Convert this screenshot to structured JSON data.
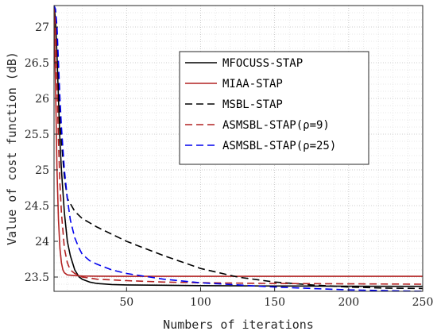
{
  "chart_data": {
    "type": "line",
    "title": "",
    "xlabel": "Numbers of iterations",
    "ylabel": "Value of cost function (dB)",
    "xlim": [
      1,
      250
    ],
    "ylim": [
      23.3,
      27.3
    ],
    "xticks": [
      50,
      100,
      150,
      200,
      250
    ],
    "yticks": [
      23.5,
      24,
      24.5,
      25,
      25.5,
      26,
      26.5,
      27
    ],
    "ytick_labels": [
      "23.5",
      "24",
      "24.5",
      "25",
      "25.5",
      "26",
      "26.5",
      "27"
    ],
    "grid": "dotted major and minor",
    "legend_position": "upper-right",
    "series": [
      {
        "name": "MFOCUSS-STAP",
        "color": "#000000",
        "dash": "solid",
        "x": [
          1,
          2,
          3,
          4,
          5,
          6,
          8,
          10,
          12,
          15,
          18,
          20,
          25,
          30,
          40,
          50,
          75,
          100,
          150,
          200,
          250
        ],
        "y": [
          27.3,
          27.1,
          26.6,
          26.0,
          25.4,
          25.0,
          24.4,
          24.0,
          23.8,
          23.6,
          23.5,
          23.47,
          23.43,
          23.41,
          23.395,
          23.39,
          23.385,
          23.38,
          23.375,
          23.372,
          23.37
        ]
      },
      {
        "name": "MIAA-STAP",
        "color": "#b22222",
        "dash": "solid",
        "x": [
          1,
          2,
          3,
          4,
          5,
          6,
          7,
          8,
          10,
          15,
          20,
          30,
          50,
          100,
          150,
          200,
          250
        ],
        "y": [
          27.3,
          26.2,
          25.0,
          24.3,
          23.9,
          23.7,
          23.6,
          23.56,
          23.53,
          23.52,
          23.515,
          23.512,
          23.51,
          23.51,
          23.51,
          23.51,
          23.51
        ]
      },
      {
        "name": "MSBL-STAP",
        "color": "#000000",
        "dash": "dashed",
        "x": [
          1,
          2,
          3,
          4,
          5,
          6,
          8,
          10,
          15,
          20,
          25,
          30,
          40,
          50,
          60,
          75,
          100,
          125,
          150,
          175,
          200,
          225,
          250
        ],
        "y": [
          27.3,
          27.2,
          26.8,
          26.3,
          25.8,
          25.4,
          24.9,
          24.6,
          24.42,
          24.32,
          24.26,
          24.2,
          24.1,
          24.0,
          23.92,
          23.8,
          23.62,
          23.5,
          23.43,
          23.39,
          23.36,
          23.345,
          23.34
        ]
      },
      {
        "name": "ASMSBL-STAP(ρ=9)",
        "color": "#b22222",
        "dash": "dashed",
        "x": [
          1,
          2,
          3,
          4,
          5,
          6,
          8,
          10,
          12,
          15,
          20,
          30,
          50,
          75,
          100,
          150,
          200,
          250
        ],
        "y": [
          27.3,
          27.0,
          26.2,
          25.4,
          24.8,
          24.4,
          23.9,
          23.7,
          23.6,
          23.55,
          23.5,
          23.47,
          23.45,
          23.43,
          23.42,
          23.41,
          23.405,
          23.4
        ]
      },
      {
        "name": "ASMSBL-STAP(ρ=25)",
        "color": "#0000ee",
        "dash": "dashed",
        "x": [
          1,
          2,
          3,
          4,
          5,
          6,
          8,
          10,
          12,
          15,
          18,
          20,
          25,
          30,
          40,
          50,
          75,
          100,
          150,
          200,
          250
        ],
        "y": [
          27.3,
          27.25,
          27.0,
          26.5,
          26.0,
          25.6,
          25.0,
          24.6,
          24.3,
          24.05,
          23.9,
          23.82,
          23.73,
          23.68,
          23.6,
          23.55,
          23.47,
          23.42,
          23.36,
          23.32,
          23.3
        ]
      }
    ]
  }
}
